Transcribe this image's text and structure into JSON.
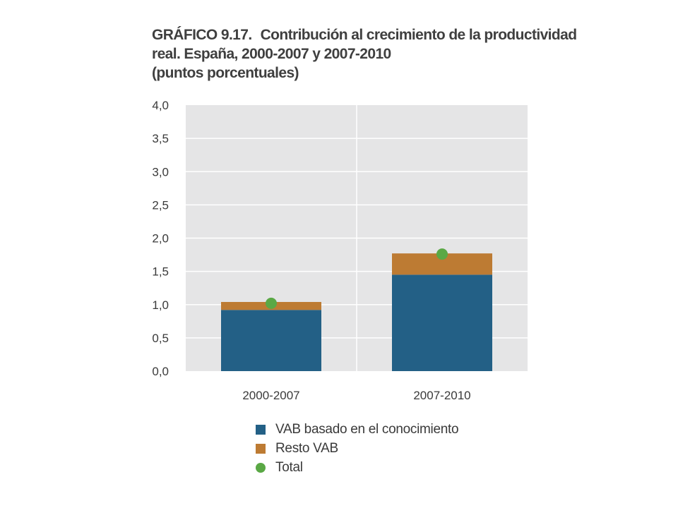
{
  "header": {
    "number": "GRÁFICO 9.17.",
    "title_line1": "Contribución al crecimiento de la productividad",
    "title_line2": "real. España, 2000-2007 y 2007-2010",
    "subtitle": "(puntos porcentuales)"
  },
  "colors": {
    "knowledge": "#236086",
    "rest": "#bd7b33",
    "total": "#5aa845",
    "plot_bg": "#e5e5e6",
    "grid": "#ffffff"
  },
  "chart_data": {
    "type": "bar",
    "stacked": true,
    "title": "Contribución al crecimiento de la productividad real. España, 2000-2007 y 2007-2010",
    "ylabel": "(puntos porcentuales)",
    "categories": [
      "2000-2007",
      "2007-2010"
    ],
    "ylim": [
      0,
      4
    ],
    "yticks": [
      "0,0",
      "0,5",
      "1,0",
      "1,5",
      "2,0",
      "2,5",
      "3,0",
      "3,5",
      "4,0"
    ],
    "grid": true,
    "legend_position": "bottom",
    "series": [
      {
        "name": "VAB basado en el conocimiento",
        "kind": "bar",
        "values": [
          0.92,
          1.45
        ]
      },
      {
        "name": "Resto VAB",
        "kind": "bar",
        "values": [
          0.12,
          0.32
        ]
      },
      {
        "name": "Total",
        "kind": "point",
        "values": [
          1.02,
          1.76
        ]
      }
    ]
  }
}
